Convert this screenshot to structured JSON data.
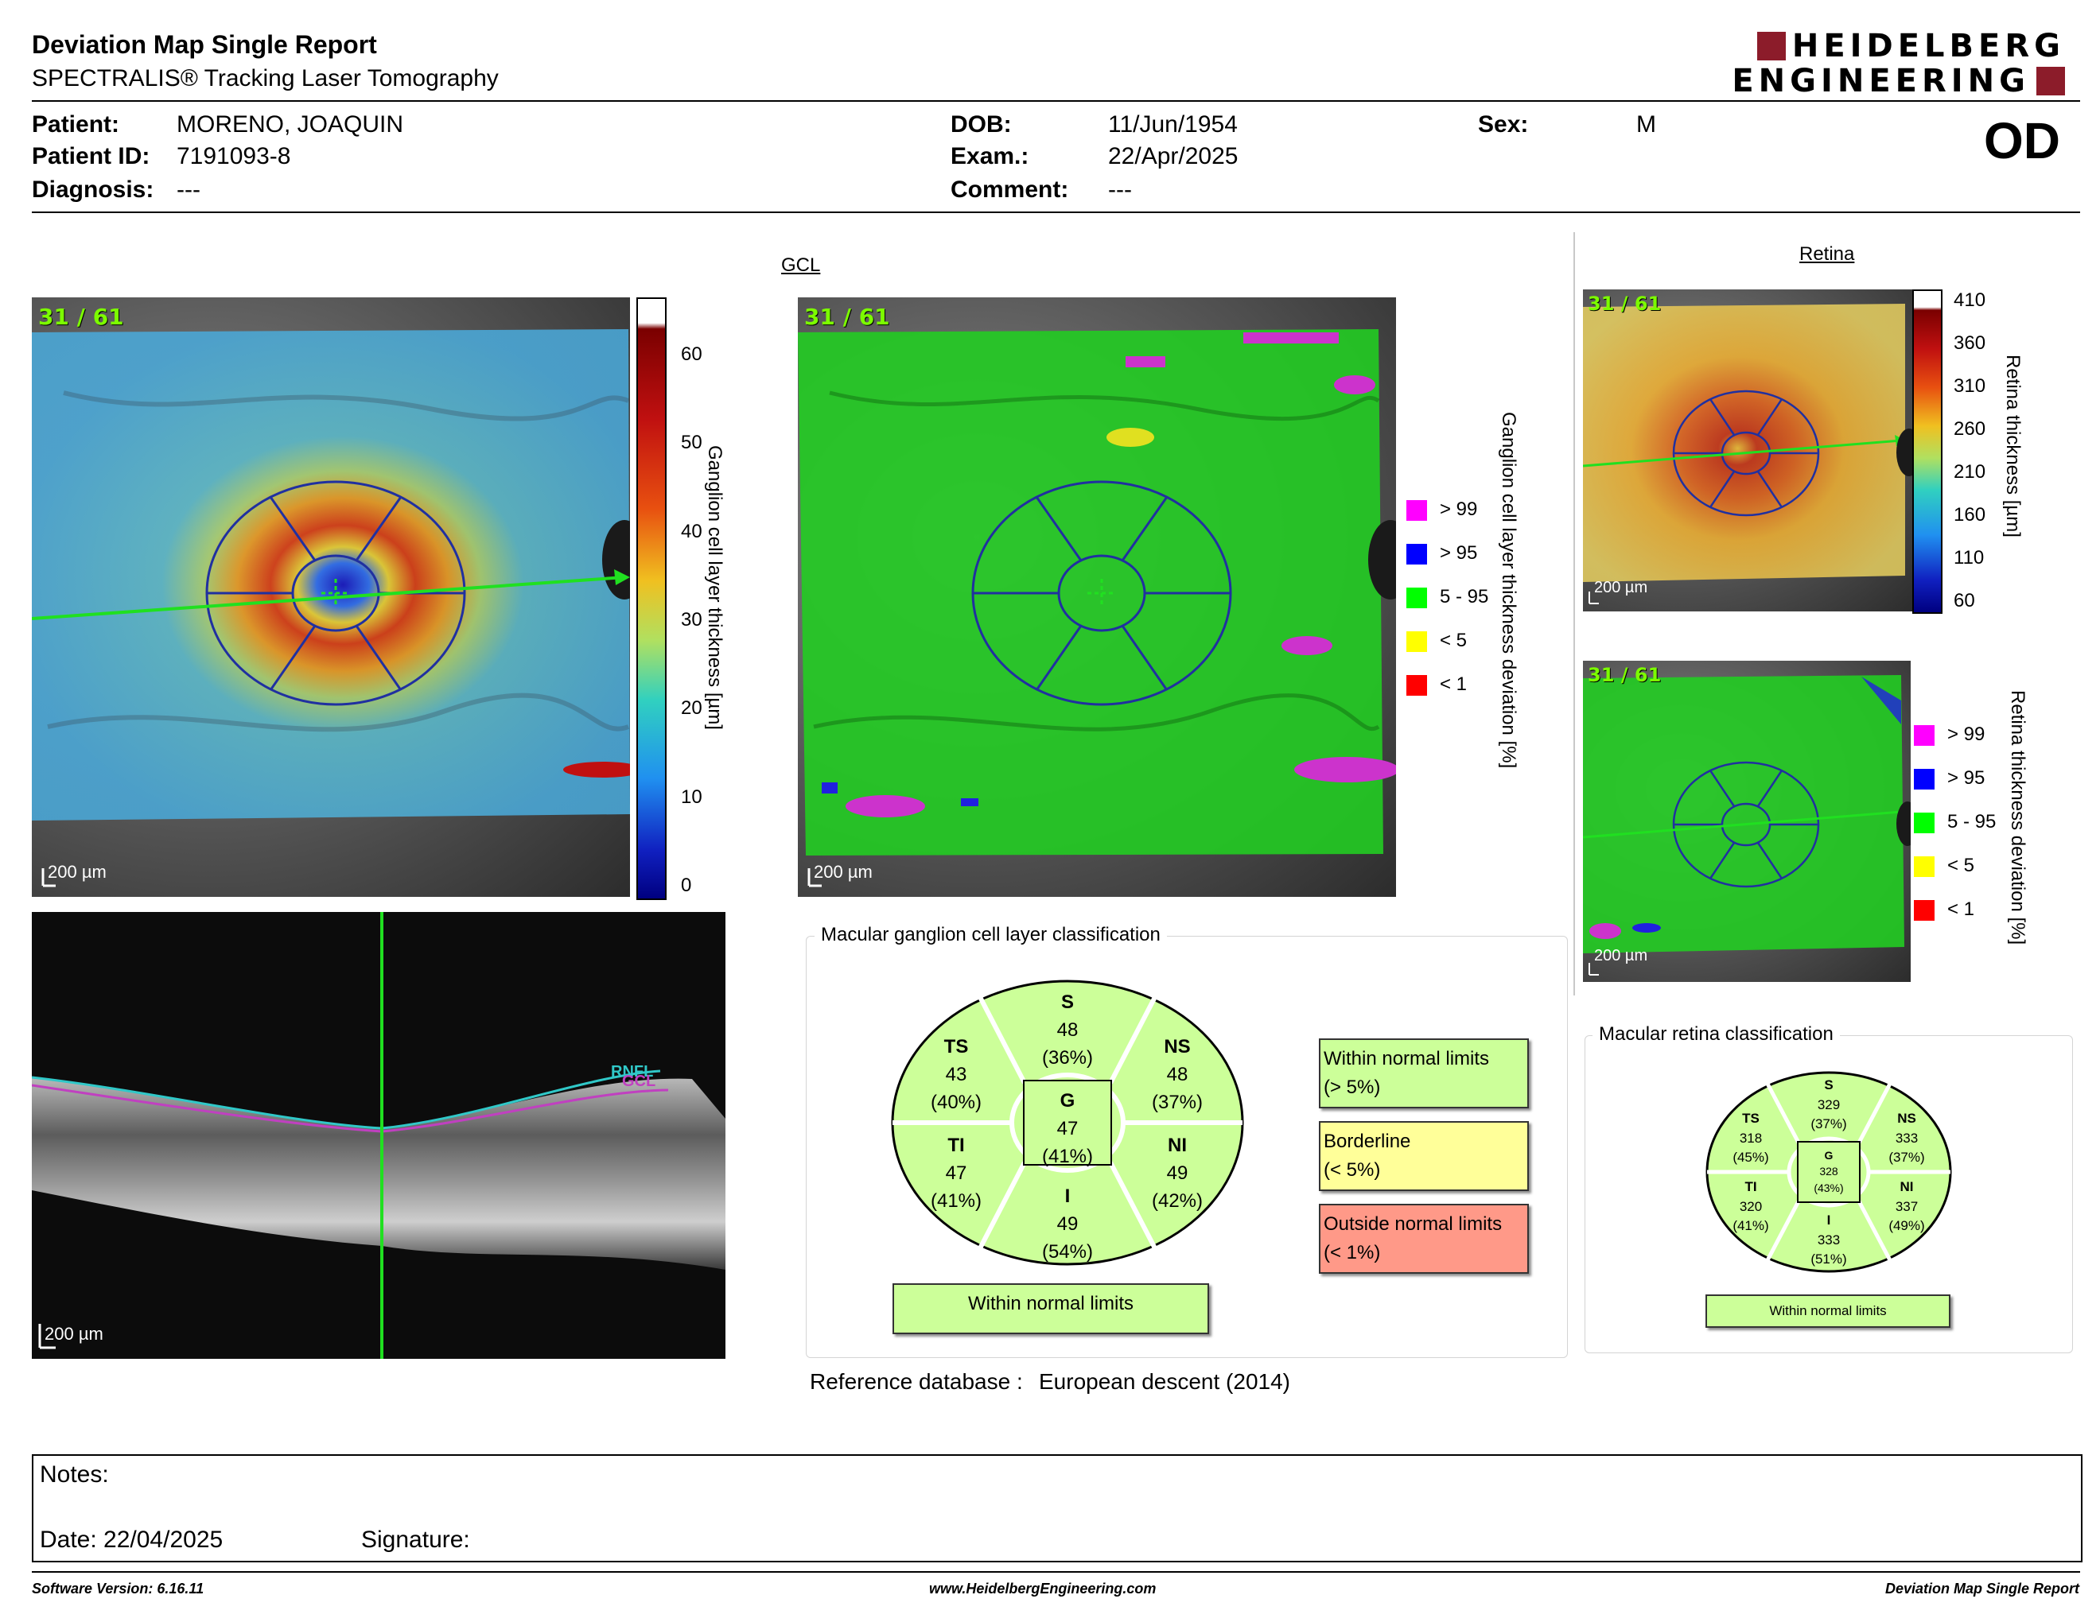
{
  "header": {
    "title": "Deviation Map Single Report",
    "subtitle": "SPECTRALIS® Tracking Laser Tomography",
    "logo_line1": "HEIDELBERG",
    "logo_line2": "ENGINEERING",
    "eye": "OD"
  },
  "patient": {
    "patient_label": "Patient:",
    "patient_value": "MORENO, JOAQUIN",
    "id_label": "Patient ID:",
    "id_value": "7191093-8",
    "diagnosis_label": "Diagnosis:",
    "diagnosis_value": "---",
    "dob_label": "DOB:",
    "dob_value": "11/Jun/1954",
    "exam_label": "Exam.:",
    "exam_value": "22/Apr/2025",
    "comment_label": "Comment:",
    "comment_value": "---",
    "sex_label": "Sex:",
    "sex_value": "M"
  },
  "gcl": {
    "section_title": "GCL",
    "thickness_map": {
      "corner_label": "31 / 61",
      "scale_label": "200 µm",
      "colorbar_ticks": [
        "60",
        "50",
        "40",
        "30",
        "20",
        "10",
        "0"
      ],
      "colorbar_title": "Ganglion cell layer thickness [µm]"
    },
    "deviation_map": {
      "corner_label": "31 / 61",
      "scale_label": "200 µm",
      "axis_title": "Ganglion cell layer thickness deviation [%]",
      "legend": [
        {
          "label": "> 99",
          "color": "#ff00ff"
        },
        {
          "label": "> 95",
          "color": "#0000ff"
        },
        {
          "label": "5 - 95",
          "color": "#00ff00"
        },
        {
          "label": "< 5",
          "color": "#ffff00"
        },
        {
          "label": "< 1",
          "color": "#ff0000"
        }
      ]
    },
    "bscan": {
      "scale_label": "200 µm",
      "layer_label_rnfl": "RNFL",
      "layer_label_gcl": "GCL"
    },
    "classification": {
      "panel_title": "Macular ganglion cell layer classification",
      "sectors": {
        "S": {
          "name": "S",
          "value": "48",
          "pct": "(36%)"
        },
        "TS": {
          "name": "TS",
          "value": "43",
          "pct": "(40%)"
        },
        "NS": {
          "name": "NS",
          "value": "48",
          "pct": "(37%)"
        },
        "G": {
          "name": "G",
          "value": "47",
          "pct": "(41%)"
        },
        "TI": {
          "name": "TI",
          "value": "47",
          "pct": "(41%)"
        },
        "NI": {
          "name": "NI",
          "value": "49",
          "pct": "(42%)"
        },
        "I": {
          "name": "I",
          "value": "49",
          "pct": "(54%)"
        }
      },
      "result": "Within normal limits",
      "legend": [
        {
          "line1": "Within normal limits",
          "line2": "(> 5%)",
          "color": "#ccff99"
        },
        {
          "line1": "Borderline",
          "line2": "(< 5%)",
          "color": "#ffff99"
        },
        {
          "line1": "Outside normal limits",
          "line2": "(< 1%)",
          "color": "#ff9988"
        }
      ]
    },
    "reference_label": "Reference database :",
    "reference_value": "European descent (2014)"
  },
  "retina": {
    "section_title": "Retina",
    "thickness_map": {
      "corner_label": "31 / 61",
      "scale_label": "200 µm",
      "colorbar_ticks": [
        "410",
        "360",
        "310",
        "260",
        "210",
        "160",
        "110",
        "60"
      ],
      "colorbar_title": "Retina thickness [µm]"
    },
    "deviation_map": {
      "corner_label": "31 / 61",
      "scale_label": "200 µm",
      "axis_title": "Retina thickness deviation [%]",
      "legend": [
        {
          "label": "> 99",
          "color": "#ff00ff"
        },
        {
          "label": "> 95",
          "color": "#0000ff"
        },
        {
          "label": "5 - 95",
          "color": "#00ff00"
        },
        {
          "label": "< 5",
          "color": "#ffff00"
        },
        {
          "label": "< 1",
          "color": "#ff0000"
        }
      ]
    },
    "classification": {
      "panel_title": "Macular retina classification",
      "sectors": {
        "S": {
          "name": "S",
          "value": "329",
          "pct": "(37%)"
        },
        "TS": {
          "name": "TS",
          "value": "318",
          "pct": "(45%)"
        },
        "NS": {
          "name": "NS",
          "value": "333",
          "pct": "(37%)"
        },
        "G": {
          "name": "G",
          "value": "328",
          "pct": "(43%)"
        },
        "TI": {
          "name": "TI",
          "value": "320",
          "pct": "(41%)"
        },
        "NI": {
          "name": "NI",
          "value": "337",
          "pct": "(49%)"
        },
        "I": {
          "name": "I",
          "value": "333",
          "pct": "(51%)"
        }
      },
      "result": "Within normal limits"
    }
  },
  "notes": {
    "notes_label": "Notes:",
    "date_label": "Date: 22/04/2025",
    "signature_label": "Signature:"
  },
  "footer": {
    "software": "Software Version: 6.16.11",
    "website": "www.HeidelbergEngineering.com",
    "report_name": "Deviation Map Single Report"
  }
}
